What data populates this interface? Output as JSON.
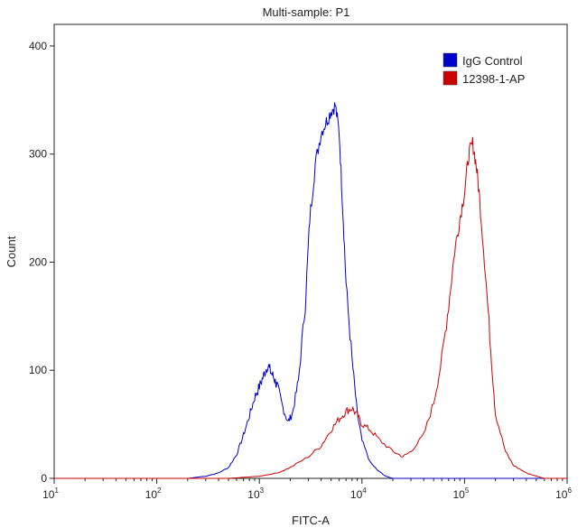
{
  "chart_data": {
    "type": "line",
    "title": "Multi-sample: P1",
    "xlabel": "FITC-A",
    "ylabel": "Count",
    "x_scale": "log",
    "xlim": [
      10,
      1000000
    ],
    "ylim": [
      0,
      420
    ],
    "x_ticks": [
      {
        "value": 10,
        "base": "10",
        "exp": "1"
      },
      {
        "value": 100,
        "base": "10",
        "exp": "2"
      },
      {
        "value": 1000,
        "base": "10",
        "exp": "3"
      },
      {
        "value": 10000,
        "base": "10",
        "exp": "4"
      },
      {
        "value": 100000,
        "base": "10",
        "exp": "5"
      },
      {
        "value": 1000000,
        "base": "10",
        "exp": "6"
      }
    ],
    "y_ticks": [
      "0",
      "100",
      "200",
      "300",
      "400"
    ],
    "legend": {
      "position": "top-right"
    },
    "series": [
      {
        "name": "IgG Control",
        "color": "#0000cc",
        "points": [
          [
            10,
            0
          ],
          [
            100,
            0
          ],
          [
            200,
            0
          ],
          [
            300,
            2
          ],
          [
            400,
            5
          ],
          [
            500,
            10
          ],
          [
            600,
            22
          ],
          [
            700,
            40
          ],
          [
            800,
            58
          ],
          [
            900,
            75
          ],
          [
            1000,
            85
          ],
          [
            1100,
            95
          ],
          [
            1200,
            105
          ],
          [
            1300,
            98
          ],
          [
            1400,
            92
          ],
          [
            1500,
            85
          ],
          [
            1700,
            65
          ],
          [
            1900,
            52
          ],
          [
            2100,
            60
          ],
          [
            2400,
            90
          ],
          [
            2800,
            160
          ],
          [
            3100,
            240
          ],
          [
            3500,
            290
          ],
          [
            4000,
            320
          ],
          [
            4500,
            330
          ],
          [
            5000,
            340
          ],
          [
            5500,
            345
          ],
          [
            6000,
            320
          ],
          [
            6500,
            250
          ],
          [
            7000,
            180
          ],
          [
            8000,
            110
          ],
          [
            9000,
            60
          ],
          [
            10000,
            35
          ],
          [
            12000,
            15
          ],
          [
            14000,
            8
          ],
          [
            17000,
            2
          ],
          [
            20000,
            0
          ],
          [
            1000000,
            0
          ]
        ]
      },
      {
        "name": "12398-1-AP",
        "color": "#cc0000",
        "points": [
          [
            10,
            0
          ],
          [
            500,
            0
          ],
          [
            1000,
            2
          ],
          [
            1500,
            5
          ],
          [
            2000,
            10
          ],
          [
            3000,
            20
          ],
          [
            4000,
            30
          ],
          [
            5000,
            45
          ],
          [
            6000,
            55
          ],
          [
            7000,
            62
          ],
          [
            8000,
            65
          ],
          [
            9000,
            58
          ],
          [
            10000,
            50
          ],
          [
            12000,
            45
          ],
          [
            15000,
            35
          ],
          [
            20000,
            25
          ],
          [
            25000,
            20
          ],
          [
            30000,
            25
          ],
          [
            40000,
            40
          ],
          [
            50000,
            70
          ],
          [
            60000,
            110
          ],
          [
            70000,
            160
          ],
          [
            80000,
            210
          ],
          [
            90000,
            240
          ],
          [
            100000,
            265
          ],
          [
            110000,
            300
          ],
          [
            120000,
            310
          ],
          [
            130000,
            290
          ],
          [
            140000,
            260
          ],
          [
            160000,
            190
          ],
          [
            180000,
            120
          ],
          [
            200000,
            60
          ],
          [
            250000,
            25
          ],
          [
            300000,
            12
          ],
          [
            400000,
            5
          ],
          [
            500000,
            2
          ],
          [
            600000,
            0
          ],
          [
            1000000,
            0
          ]
        ]
      }
    ]
  }
}
